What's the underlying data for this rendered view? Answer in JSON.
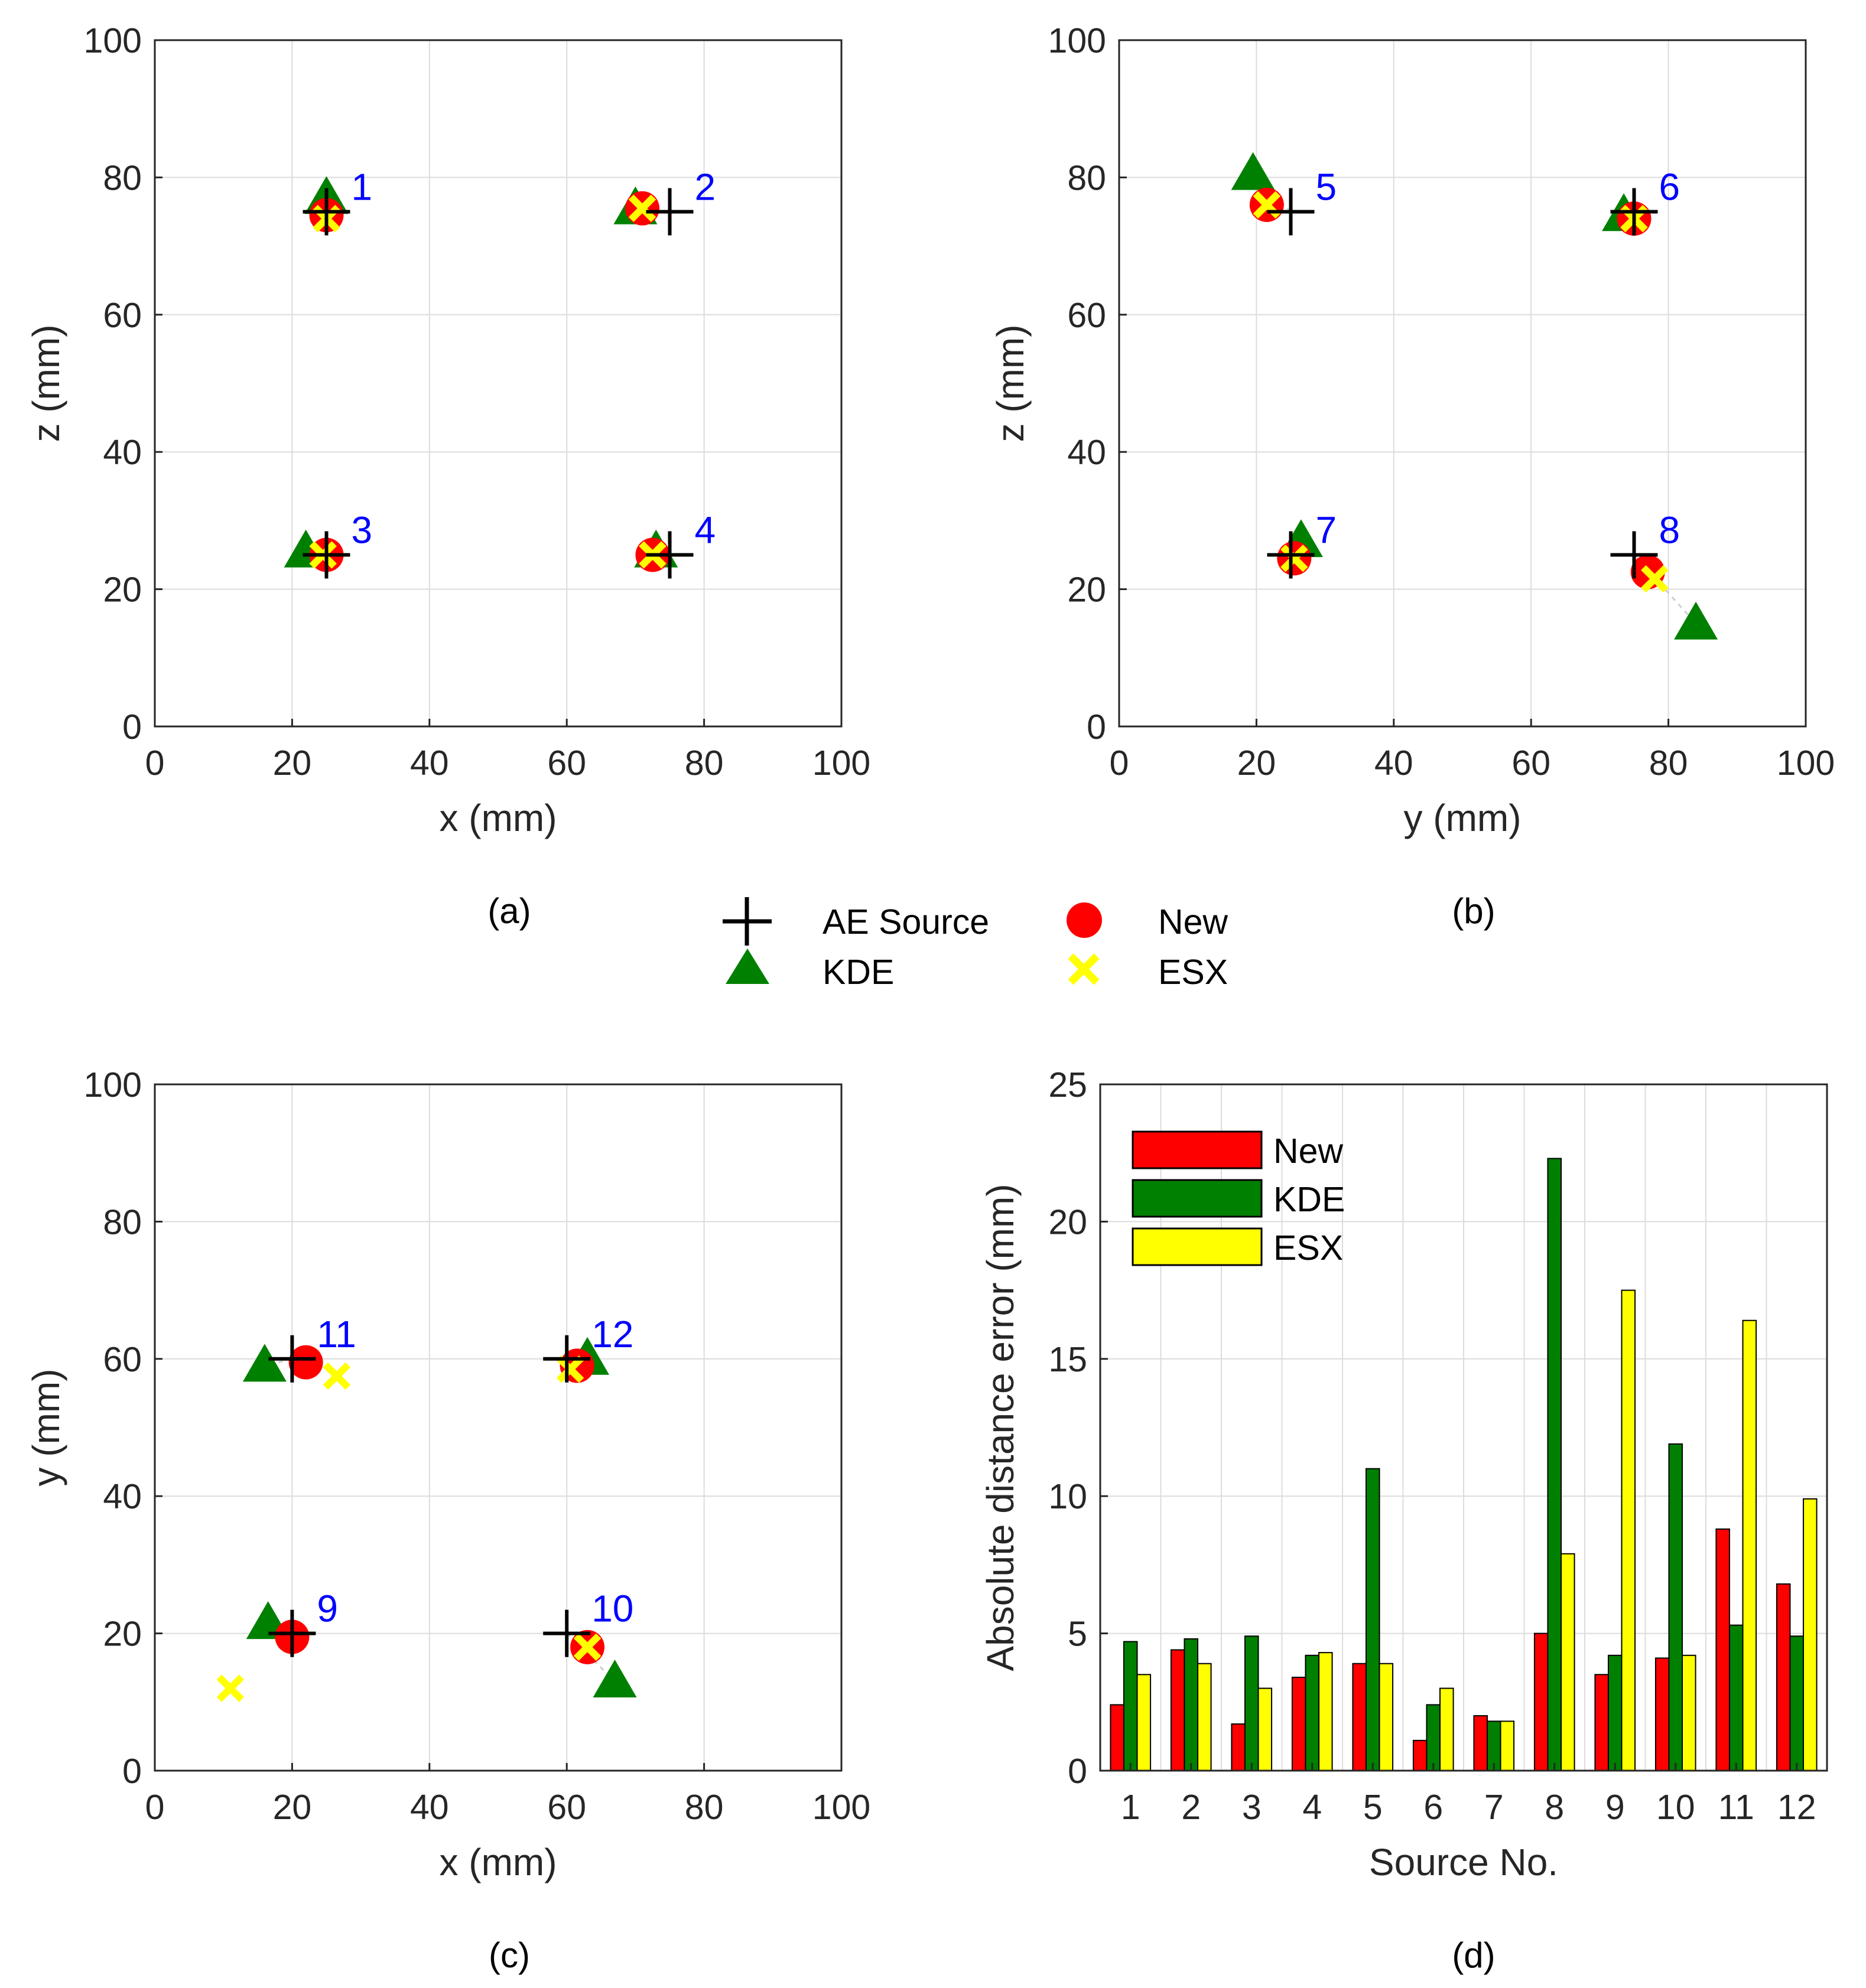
{
  "colors": {
    "new": "#ff0000",
    "kde": "#008000",
    "esx": "#ffff00",
    "source": "#000000",
    "label": "#0000ff",
    "grid": "#dcdcdc",
    "axis": "#262626"
  },
  "legend": {
    "source": "AE Source",
    "new": "New",
    "kde": "KDE",
    "esx": "ESX"
  },
  "chart_data": [
    {
      "id": "a",
      "type": "scatter",
      "caption": "(a)",
      "xlabel": "x (mm)",
      "ylabel": "z (mm)",
      "xlim": [
        0,
        100
      ],
      "ylim": [
        0,
        100
      ],
      "xticks": [
        "0",
        "20",
        "40",
        "60",
        "80",
        "100"
      ],
      "yticks": [
        "0",
        "20",
        "40",
        "60",
        "80",
        "100"
      ],
      "grid": true,
      "sources": [
        {
          "no": "1",
          "true": [
            25,
            75
          ],
          "new": [
            25,
            74.5
          ],
          "kde": [
            25,
            77
          ],
          "esx": [
            25,
            74
          ]
        },
        {
          "no": "2",
          "true": [
            75,
            75
          ],
          "new": [
            71,
            75.5
          ],
          "kde": [
            70,
            75.5
          ],
          "esx": [
            71,
            75.5
          ]
        },
        {
          "no": "3",
          "true": [
            25,
            25
          ],
          "new": [
            25,
            25
          ],
          "kde": [
            22,
            25.5
          ],
          "esx": [
            24.5,
            25
          ]
        },
        {
          "no": "4",
          "true": [
            75,
            25
          ],
          "new": [
            72.5,
            25
          ],
          "kde": [
            73,
            25.5
          ],
          "esx": [
            72.5,
            25
          ]
        }
      ]
    },
    {
      "id": "b",
      "type": "scatter",
      "caption": "(b)",
      "xlabel": "y (mm)",
      "ylabel": "z (mm)",
      "xlim": [
        0,
        100
      ],
      "ylim": [
        0,
        100
      ],
      "xticks": [
        "0",
        "20",
        "40",
        "60",
        "80",
        "100"
      ],
      "yticks": [
        "0",
        "20",
        "40",
        "60",
        "80",
        "100"
      ],
      "grid": true,
      "sources": [
        {
          "no": "5",
          "true": [
            25,
            75
          ],
          "new": [
            21.5,
            76
          ],
          "kde": [
            19.5,
            80.5
          ],
          "esx": [
            21.5,
            76
          ]
        },
        {
          "no": "6",
          "true": [
            75,
            75
          ],
          "new": [
            75,
            74
          ],
          "kde": [
            73.5,
            74.5
          ],
          "esx": [
            75,
            74
          ]
        },
        {
          "no": "7",
          "true": [
            25,
            25
          ],
          "new": [
            25.5,
            24.5
          ],
          "kde": [
            26.5,
            27
          ],
          "esx": [
            25.5,
            24.5
          ]
        },
        {
          "no": "8",
          "true": [
            75,
            25
          ],
          "new": [
            77,
            22.5
          ],
          "kde": [
            84,
            15
          ],
          "esx": [
            78,
            21.5
          ]
        }
      ]
    },
    {
      "id": "c",
      "type": "scatter",
      "caption": "(c)",
      "xlabel": "x (mm)",
      "ylabel": "y (mm)",
      "xlim": [
        0,
        100
      ],
      "ylim": [
        0,
        100
      ],
      "xticks": [
        "0",
        "20",
        "40",
        "60",
        "80",
        "100"
      ],
      "yticks": [
        "0",
        "20",
        "40",
        "60",
        "80",
        "100"
      ],
      "grid": true,
      "sources": [
        {
          "no": "9",
          "true": [
            20,
            20
          ],
          "new": [
            20,
            19.5
          ],
          "kde": [
            16.5,
            21.5
          ],
          "esx": [
            11,
            12
          ]
        },
        {
          "no": "10",
          "true": [
            60,
            20
          ],
          "new": [
            63,
            18
          ],
          "kde": [
            67,
            13
          ],
          "esx": [
            63,
            18
          ]
        },
        {
          "no": "11",
          "true": [
            20,
            60
          ],
          "new": [
            22,
            59.5
          ],
          "kde": [
            16,
            59
          ],
          "esx": [
            26.5,
            57.5
          ]
        },
        {
          "no": "12",
          "true": [
            60,
            60
          ],
          "new": [
            61.5,
            59
          ],
          "kde": [
            63,
            60
          ],
          "esx": [
            60.5,
            58.5
          ]
        }
      ]
    },
    {
      "id": "d",
      "type": "bar",
      "caption": "(d)",
      "title": "",
      "xlabel": "Source No.",
      "ylabel": "Absolute distance error (mm)",
      "ylim": [
        0,
        25
      ],
      "yticks": [
        "0",
        "5",
        "10",
        "15",
        "20",
        "25"
      ],
      "grid": true,
      "legend_position": "top-left",
      "categories": [
        "1",
        "2",
        "3",
        "4",
        "5",
        "6",
        "7",
        "8",
        "9",
        "10",
        "11",
        "12"
      ],
      "series": [
        {
          "name": "New",
          "values": [
            2.4,
            4.4,
            1.7,
            3.4,
            3.9,
            1.1,
            2.0,
            5.0,
            3.5,
            4.1,
            8.8,
            6.8
          ]
        },
        {
          "name": "KDE",
          "values": [
            4.7,
            4.8,
            4.9,
            4.2,
            11.0,
            2.4,
            1.8,
            22.3,
            4.2,
            11.9,
            5.3,
            4.9
          ]
        },
        {
          "name": "ESX",
          "values": [
            3.5,
            3.9,
            3.0,
            4.3,
            3.9,
            3.0,
            1.8,
            7.9,
            17.5,
            4.2,
            16.4,
            9.9
          ]
        }
      ]
    }
  ]
}
